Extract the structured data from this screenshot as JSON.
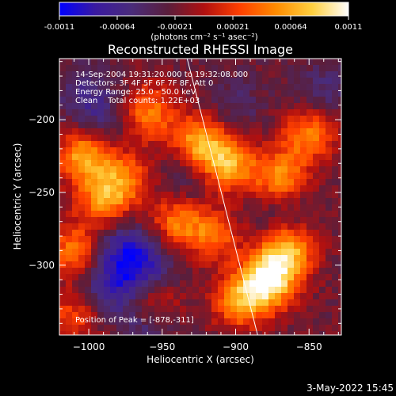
{
  "chart_data": {
    "type": "heatmap",
    "title": "Reconstructed RHESSI Image",
    "xlabel": "Heliocentric X (arcsec)",
    "ylabel": "Heliocentric Y (arcsec)",
    "xlim": [
      -1020,
      -828
    ],
    "ylim": [
      -348,
      -158
    ],
    "x_ticks": [
      -1000,
      -950,
      -900,
      -850
    ],
    "y_ticks": [
      -200,
      -250,
      -300
    ],
    "colorbar": {
      "range": [
        -0.0011,
        0.0011
      ],
      "ticks": [
        "-0.0011",
        "-0.00064",
        "-0.00021",
        "0.00021",
        "0.00064",
        "0.0011"
      ],
      "unit_label": "(photons cm⁻² s⁻¹ asec⁻²)",
      "colormap": [
        "#0000ff",
        "#3a1aa0",
        "#4a2c7a",
        "#5a1e3c",
        "#b01010",
        "#ff4000",
        "#ff8c00",
        "#ffd040",
        "#ffffff"
      ]
    },
    "annotations": [
      "14-Sep-2004 19:31:20.000 to 19:32:08.000",
      "Detectors: 3F 4F 5F 6F 7F 8F, Att 0",
      "Energy Range: 25.0 - 50.0 keV",
      "Clean    Total counts: 1.22E+03"
    ],
    "peak_label": "Position of Peak = [-878,-311]",
    "peak_position": [
      -878,
      -311
    ],
    "limb_line": [
      [
        -933,
        -158
      ],
      [
        -885,
        -348
      ]
    ],
    "bright_sources": [
      {
        "x": -878,
        "y": -311,
        "amp": 1.0
      },
      {
        "x": -865,
        "y": -290,
        "amp": 0.8
      },
      {
        "x": -897,
        "y": -325,
        "amp": 0.65
      },
      {
        "x": -905,
        "y": -230,
        "amp": 0.75
      },
      {
        "x": -925,
        "y": -215,
        "amp": 0.7
      },
      {
        "x": -870,
        "y": -240,
        "amp": 0.65
      },
      {
        "x": -850,
        "y": -210,
        "amp": 0.6
      },
      {
        "x": -1003,
        "y": -225,
        "amp": 0.75
      },
      {
        "x": -990,
        "y": -255,
        "amp": 0.6
      },
      {
        "x": -1010,
        "y": -290,
        "amp": 0.55
      },
      {
        "x": -960,
        "y": -195,
        "amp": 0.6
      },
      {
        "x": -975,
        "y": -240,
        "amp": 0.5
      },
      {
        "x": -940,
        "y": -270,
        "amp": 0.55
      },
      {
        "x": -955,
        "y": -325,
        "amp": 0.45
      },
      {
        "x": -1010,
        "y": -335,
        "amp": 0.4
      },
      {
        "x": -915,
        "y": -280,
        "amp": 0.5
      }
    ],
    "dark_sources": [
      {
        "x": -975,
        "y": -290,
        "amp": 0.9
      },
      {
        "x": -985,
        "y": -315,
        "amp": 0.8
      },
      {
        "x": -958,
        "y": -305,
        "amp": 0.7
      },
      {
        "x": -990,
        "y": -200,
        "amp": 0.5
      },
      {
        "x": -1003,
        "y": -180,
        "amp": 0.45
      },
      {
        "x": -935,
        "y": -240,
        "amp": 0.4
      },
      {
        "x": -840,
        "y": -180,
        "amp": 0.45
      },
      {
        "x": -900,
        "y": -190,
        "amp": 0.35
      },
      {
        "x": -870,
        "y": -265,
        "amp": 0.35
      },
      {
        "x": -960,
        "y": -340,
        "amp": 0.55
      }
    ]
  },
  "footer": {
    "date_stamp": "3-May-2022 15:45"
  }
}
